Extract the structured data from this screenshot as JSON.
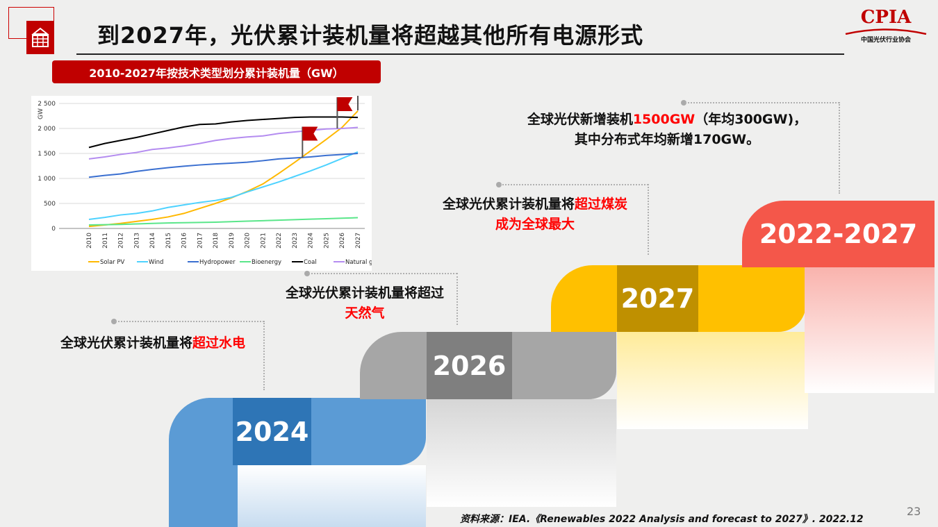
{
  "header": {
    "title": "到2027年，光伏累计装机量将超越其他所有电源形式",
    "logo_text": "CPIA",
    "logo_subtitle": "中国光伏行业协会",
    "icon": "solar-panel-icon"
  },
  "chart_banner": "2010-2027年按技术类型划分累计装机量（GW）",
  "chart_data": {
    "type": "line",
    "ylabel": "GW",
    "ylim": [
      0,
      2500
    ],
    "yticks": [
      "0",
      "500",
      "1 000",
      "1 500",
      "2 000",
      "2 500"
    ],
    "grid": true,
    "legend": "bottom",
    "x": [
      "2010",
      "2011",
      "2012",
      "2013",
      "2014",
      "2015",
      "2016",
      "2017",
      "2018",
      "2019",
      "2020",
      "2021",
      "2022",
      "2023",
      "2024",
      "2025",
      "2026",
      "2027"
    ],
    "series": [
      {
        "name": "Solar PV",
        "color": "#ffb800",
        "values": [
          40,
          70,
          100,
          140,
          180,
          230,
          300,
          400,
          500,
          610,
          740,
          890,
          1100,
          1320,
          1550,
          1780,
          2020,
          2350
        ]
      },
      {
        "name": "Wind",
        "color": "#4dd2ff",
        "values": [
          180,
          220,
          270,
          300,
          350,
          420,
          470,
          520,
          560,
          620,
          730,
          830,
          930,
          1040,
          1150,
          1270,
          1400,
          1530
        ]
      },
      {
        "name": "Hydropower",
        "color": "#3a6fd0",
        "values": [
          1025,
          1060,
          1090,
          1140,
          1180,
          1215,
          1245,
          1270,
          1290,
          1305,
          1325,
          1355,
          1390,
          1410,
          1430,
          1460,
          1480,
          1500
        ]
      },
      {
        "name": "Bioenergy",
        "color": "#5ae68a",
        "values": [
          70,
          75,
          80,
          90,
          100,
          110,
          115,
          120,
          125,
          135,
          145,
          155,
          165,
          175,
          185,
          195,
          205,
          215
        ]
      },
      {
        "name": "Coal",
        "color": "#000000",
        "values": [
          1620,
          1700,
          1760,
          1820,
          1890,
          1960,
          2030,
          2080,
          2090,
          2130,
          2160,
          2180,
          2200,
          2220,
          2230,
          2230,
          2230,
          2220
        ]
      },
      {
        "name": "Natural gas",
        "color": "#b48cf0",
        "values": [
          1390,
          1430,
          1480,
          1520,
          1580,
          1610,
          1650,
          1700,
          1760,
          1800,
          1830,
          1850,
          1900,
          1930,
          1960,
          1990,
          2000,
          2020
        ]
      }
    ]
  },
  "callouts": {
    "c2024": {
      "a": "全球光伏累计装机量将",
      "b": "超过水电"
    },
    "c2026": {
      "a": "全球光伏累计装机量将超过",
      "b": "天然气"
    },
    "c2027": {
      "a": "全球光伏累计装机量将",
      "b": "超过煤炭",
      "c": "成为全球最大"
    },
    "c2227": {
      "a": "全球光伏新增装机",
      "b": "1500GW",
      "c": "（年均300GW)，",
      "d": "其中分布式年均新增170GW。"
    }
  },
  "steps": [
    {
      "label": "2024",
      "color": "#5b9bd5",
      "dark": "#2e75b6"
    },
    {
      "label": "2026",
      "color": "#a6a6a6",
      "dark": "#7f7f7f"
    },
    {
      "label": "2027",
      "color": "#ffc000",
      "dark": "#bf9000"
    },
    {
      "label": "2022-2027",
      "color": "#f4574a",
      "dark": "#f4574a"
    }
  ],
  "footer": {
    "source": "资料来源：IEA.《Renewables 2022 Analysis and forecast to 2027》. 2022.12",
    "page": "23"
  }
}
